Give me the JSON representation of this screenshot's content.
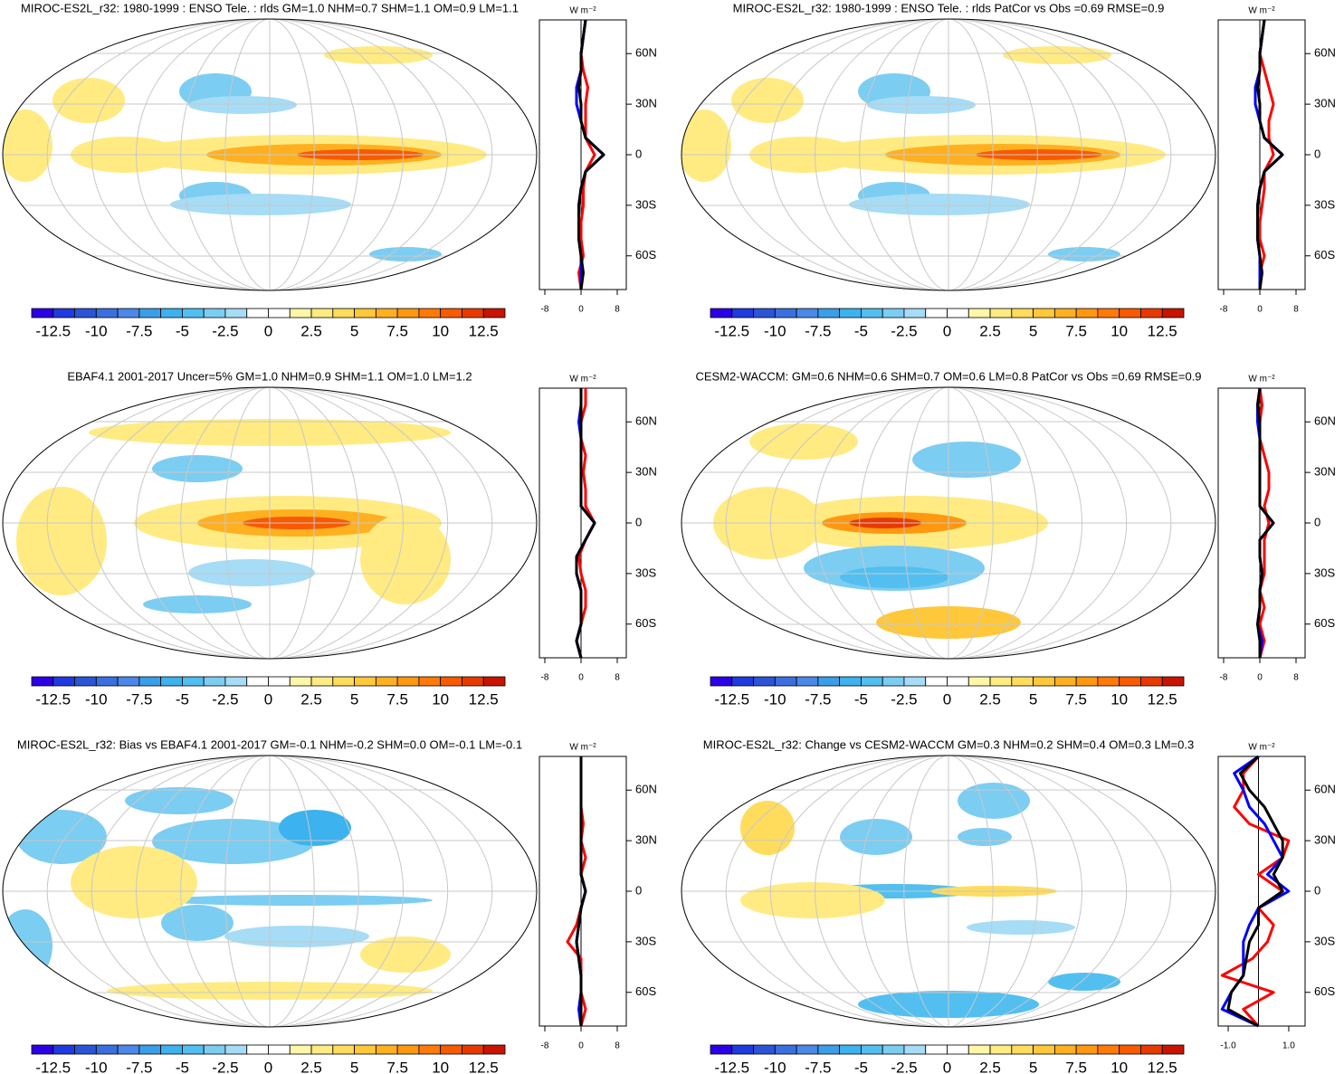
{
  "colorbar": {
    "range": [
      -13.75,
      13.75
    ],
    "labels": [
      -12.5,
      -10,
      -7.5,
      -5,
      -2.5,
      0,
      2.5,
      5,
      7.5,
      10,
      12.5
    ],
    "colors": [
      "#2b00e6",
      "#1f3be0",
      "#2b54d6",
      "#3a6fe0",
      "#4b88e8",
      "#3a9fe8",
      "#3cb2ee",
      "#52bff0",
      "#7ccdf2",
      "#a6dcf5",
      "#ffffff",
      "#ffffff",
      "#fff6a8",
      "#ffeb82",
      "#ffdc5c",
      "#ffc83a",
      "#ffb020",
      "#ff9810",
      "#ff7a08",
      "#f85a00",
      "#e83a00",
      "#c81400"
    ]
  },
  "chart_data": [
    {
      "type": "line",
      "title": "MIROC-ES2L_r32: 1980-1999 : ENSO Tele. : rlds GM=1.0 NHM=0.7 SHM=1.1 OM=0.9 LM=1.1",
      "x_label": "W m⁻²",
      "xlim": [
        -9.2,
        10
      ],
      "xticks": [
        -8,
        0,
        8
      ],
      "ylim": [
        -80,
        80
      ],
      "yticks": [
        {
          "value": 60,
          "label": "60N"
        },
        {
          "value": 30,
          "label": "30N"
        },
        0,
        {
          "value": -30,
          "label": "30S"
        },
        {
          "value": -60,
          "label": "60S"
        }
      ],
      "y": [
        -80,
        -70,
        -60,
        -50,
        -40,
        -30,
        -20,
        -10,
        0,
        10,
        20,
        30,
        40,
        50,
        60,
        70,
        80
      ],
      "series": [
        {
          "color": "#ff0000",
          "values": [
            0,
            -0.5,
            0.5,
            0,
            0,
            0.5,
            0.5,
            1,
            3,
            1,
            1,
            1,
            1.5,
            0.5,
            0,
            0.5,
            1
          ]
        },
        {
          "color": "#0000ff",
          "values": [
            0,
            0,
            0,
            -0.5,
            -0.5,
            -0.5,
            0,
            1,
            5,
            1,
            0,
            -1,
            -1,
            0,
            0,
            0.5,
            1
          ]
        },
        {
          "color": "#000000",
          "values": [
            0,
            0.5,
            0,
            -0.5,
            -0.5,
            -0.5,
            0,
            1,
            5,
            1,
            0,
            0,
            -0.5,
            0,
            0,
            0.5,
            1
          ]
        }
      ]
    },
    {
      "type": "line",
      "title": "MIROC-ES2L_r32: 1980-1999 : ENSO Tele. : rlds PatCor vs Obs =0.69 RMSE=0.9",
      "x_label": "W m⁻²",
      "xlim": [
        -9.2,
        10
      ],
      "xticks": [
        -8,
        0,
        8
      ],
      "ylim": [
        -80,
        80
      ],
      "yticks": [
        {
          "value": 60,
          "label": "60N"
        },
        {
          "value": 30,
          "label": "30N"
        },
        0,
        {
          "value": -30,
          "label": "30S"
        },
        {
          "value": -60,
          "label": "60S"
        }
      ],
      "y": [
        -80,
        -70,
        -60,
        -50,
        -40,
        -30,
        -20,
        -10,
        0,
        10,
        20,
        30,
        40,
        50,
        60,
        70,
        80
      ],
      "series": [
        {
          "color": "#ff0000",
          "values": [
            0,
            0,
            1,
            0,
            0,
            0.5,
            1,
            1,
            3,
            2,
            2,
            3,
            2,
            1,
            0,
            0.5,
            1
          ]
        },
        {
          "color": "#0000ff",
          "values": [
            0,
            0,
            0,
            -0.5,
            -0.5,
            -0.5,
            0,
            1,
            5,
            1,
            0,
            -1,
            -1,
            0,
            0,
            0.5,
            1
          ]
        },
        {
          "color": "#000000",
          "values": [
            0,
            0.5,
            0,
            -0.5,
            -0.5,
            -0.5,
            0,
            1,
            5,
            1,
            0,
            0,
            -0.5,
            0,
            0,
            0.5,
            1
          ]
        }
      ]
    },
    {
      "type": "line",
      "title": "EBAF4.1 2001-2017 Uncer=5% GM=1.0 NHM=0.9 SHM=1.1 OM=1.0 LM=1.2",
      "x_label": "W m⁻²",
      "xlim": [
        -9.2,
        10
      ],
      "xticks": [
        -8,
        0,
        8
      ],
      "ylim": [
        -80,
        80
      ],
      "yticks": [
        {
          "value": 60,
          "label": "60N"
        },
        {
          "value": 30,
          "label": "30N"
        },
        0,
        {
          "value": -30,
          "label": "30S"
        },
        {
          "value": -60,
          "label": "60S"
        }
      ],
      "y": [
        -80,
        -70,
        -60,
        -50,
        -40,
        -30,
        -20,
        -10,
        0,
        10,
        20,
        30,
        40,
        50,
        60,
        70,
        80
      ],
      "series": [
        {
          "color": "#ff0000",
          "values": [
            0,
            -1,
            0,
            1,
            1,
            0,
            -0.5,
            1,
            3,
            1,
            1,
            0.5,
            1,
            0,
            0,
            1,
            1
          ]
        },
        {
          "color": "#0000ff",
          "values": [
            0,
            -1,
            0,
            0,
            0,
            -1,
            -1,
            1,
            3,
            0,
            0,
            0,
            0,
            0,
            -0.5,
            0,
            0
          ]
        },
        {
          "color": "#000000",
          "values": [
            0,
            -1,
            0,
            0,
            0,
            -1,
            -1,
            1,
            3,
            0,
            0,
            0,
            0,
            0,
            0,
            0,
            0
          ]
        }
      ]
    },
    {
      "type": "line",
      "title": "CESM2-WACCM: GM=0.6 NHM=0.6 SHM=0.7 OM=0.6 LM=0.8 PatCor vs Obs =0.69 RMSE=0.9",
      "x_label": "W m⁻²",
      "xlim": [
        -9.2,
        10
      ],
      "xticks": [
        -8,
        0,
        8
      ],
      "ylim": [
        -80,
        80
      ],
      "yticks": [
        {
          "value": 60,
          "label": "60N"
        },
        {
          "value": 30,
          "label": "30N"
        },
        0,
        {
          "value": -30,
          "label": "30S"
        },
        {
          "value": -60,
          "label": "60S"
        }
      ],
      "y": [
        -80,
        -70,
        -60,
        -50,
        -40,
        -30,
        -20,
        -10,
        0,
        10,
        20,
        30,
        40,
        50,
        60,
        70,
        80
      ],
      "series": [
        {
          "color": "#ff0000",
          "values": [
            0,
            1,
            0,
            1,
            0,
            1,
            1,
            1,
            2,
            1,
            2,
            2,
            1,
            0,
            0,
            0.5,
            0
          ]
        },
        {
          "color": "#0000ff",
          "values": [
            0,
            0.5,
            -0.5,
            0,
            0,
            0.5,
            0,
            0,
            3,
            0,
            0,
            0,
            0,
            0,
            -0.5,
            -0.5,
            0
          ]
        },
        {
          "color": "#000000",
          "values": [
            0,
            0,
            -0.5,
            0,
            0,
            0.5,
            0,
            0,
            3,
            0,
            0,
            0,
            0,
            0,
            0,
            -0.5,
            0
          ]
        }
      ]
    },
    {
      "type": "line",
      "title": "MIROC-ES2L_r32: Bias vs EBAF4.1 2001-2017 GM=-0.1 NHM=-0.2 SHM=0.0 OM=-0.1 LM=-0.1",
      "x_label": "W m⁻²",
      "xlim": [
        -9.2,
        10
      ],
      "xticks": [
        -8,
        0,
        8
      ],
      "ylim": [
        -80,
        80
      ],
      "yticks": [
        {
          "value": 60,
          "label": "60N"
        },
        {
          "value": 30,
          "label": "30N"
        },
        0,
        {
          "value": -30,
          "label": "30S"
        },
        {
          "value": -60,
          "label": "60S"
        }
      ],
      "y": [
        -80,
        -70,
        -60,
        -50,
        -40,
        -30,
        -20,
        -10,
        0,
        10,
        20,
        30,
        40,
        50,
        60,
        70,
        80
      ],
      "series": [
        {
          "color": "#ff0000",
          "values": [
            0,
            1,
            0,
            0,
            0,
            -3,
            -1,
            0,
            1,
            0,
            1,
            0,
            0.5,
            0,
            0,
            0,
            0
          ]
        },
        {
          "color": "#0000ff",
          "values": [
            0,
            -0.5,
            0,
            0,
            -0.5,
            -1,
            -0.5,
            0,
            1,
            0,
            0,
            0,
            0,
            0,
            0,
            0,
            0
          ]
        },
        {
          "color": "#000000",
          "values": [
            0,
            0,
            0,
            0,
            -0.5,
            -1,
            -0.5,
            0,
            1,
            0,
            0,
            0,
            0,
            0,
            0,
            0,
            0
          ]
        }
      ]
    },
    {
      "type": "line",
      "title": "MIROC-ES2L_r32: Change vs CESM2-WACCM GM=0.3 NHM=0.2 SHM=0.4 OM=0.3 LM=0.3",
      "x_label": "W m⁻²",
      "xlim": [
        -1.33,
        1.54
      ],
      "xticks": [
        {
          "value": -1,
          "label": "-1.0"
        },
        {
          "value": 1,
          "label": "1.0"
        }
      ],
      "ylim": [
        -80,
        80
      ],
      "yticks": [
        {
          "value": 60,
          "label": "60N"
        },
        {
          "value": 30,
          "label": "30N"
        },
        0,
        {
          "value": -30,
          "label": "30S"
        },
        {
          "value": -60,
          "label": "60S"
        }
      ],
      "y": [
        -80,
        -70,
        -60,
        -50,
        -40,
        -30,
        -20,
        -10,
        0,
        10,
        20,
        30,
        40,
        50,
        60,
        70,
        80
      ],
      "series": [
        {
          "color": "#ff0000",
          "values": [
            0,
            -0.5,
            0.5,
            -1.2,
            -0.2,
            0.3,
            0.5,
            0,
            0.8,
            0,
            0.8,
            1.0,
            -0.3,
            -0.8,
            -0.5,
            -0.5,
            0
          ]
        },
        {
          "color": "#0000ff",
          "values": [
            0,
            -1.2,
            -0.9,
            -0.5,
            -0.5,
            -0.5,
            -0.3,
            0,
            1,
            0.3,
            0.8,
            0.5,
            0.2,
            -0.3,
            -0.5,
            -0.8,
            0
          ]
        },
        {
          "color": "#000000",
          "values": [
            0,
            -1,
            -0.9,
            -0.5,
            -0.4,
            -0.3,
            0,
            0,
            0.8,
            0.5,
            0.8,
            0.8,
            0.5,
            0.2,
            -0.3,
            -0.6,
            0
          ]
        }
      ]
    }
  ]
}
